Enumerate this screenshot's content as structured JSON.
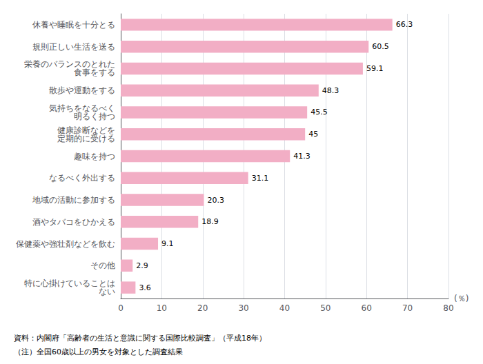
{
  "chart_data": {
    "type": "bar",
    "orientation": "horizontal",
    "categories": [
      "休養や睡眠を十分とる",
      "規則正しい生活を送る",
      "栄養のバランスのとれた\n食事をする",
      "散歩や運動をする",
      "気持ちをなるべく\n明るく持つ",
      "健康診断などを\n定期的に受ける",
      "趣味を持つ",
      "なるべく外出する",
      "地域の活動に参加する",
      "酒やタバコをひかえる",
      "保健薬や強壮剤などを飲む",
      "その他",
      "特に心掛けていることは\nない"
    ],
    "values": [
      66.3,
      60.5,
      59.1,
      48.3,
      45.5,
      45.0,
      41.3,
      31.1,
      20.3,
      18.9,
      9.1,
      2.9,
      3.6
    ],
    "color": "#f2aec5",
    "xlabel": "(％)",
    "xlim": [
      0,
      80
    ],
    "xticks": [
      0,
      10,
      20,
      30,
      40,
      50,
      60,
      70,
      80
    ],
    "grid": true,
    "data_labels": true,
    "annotations": [
      "資料：内閣府「高齢者の生活と意識に関する国際比較調査」（平成18年）",
      "（注）全国60歳以上の男女を対象とした調査結果"
    ]
  }
}
